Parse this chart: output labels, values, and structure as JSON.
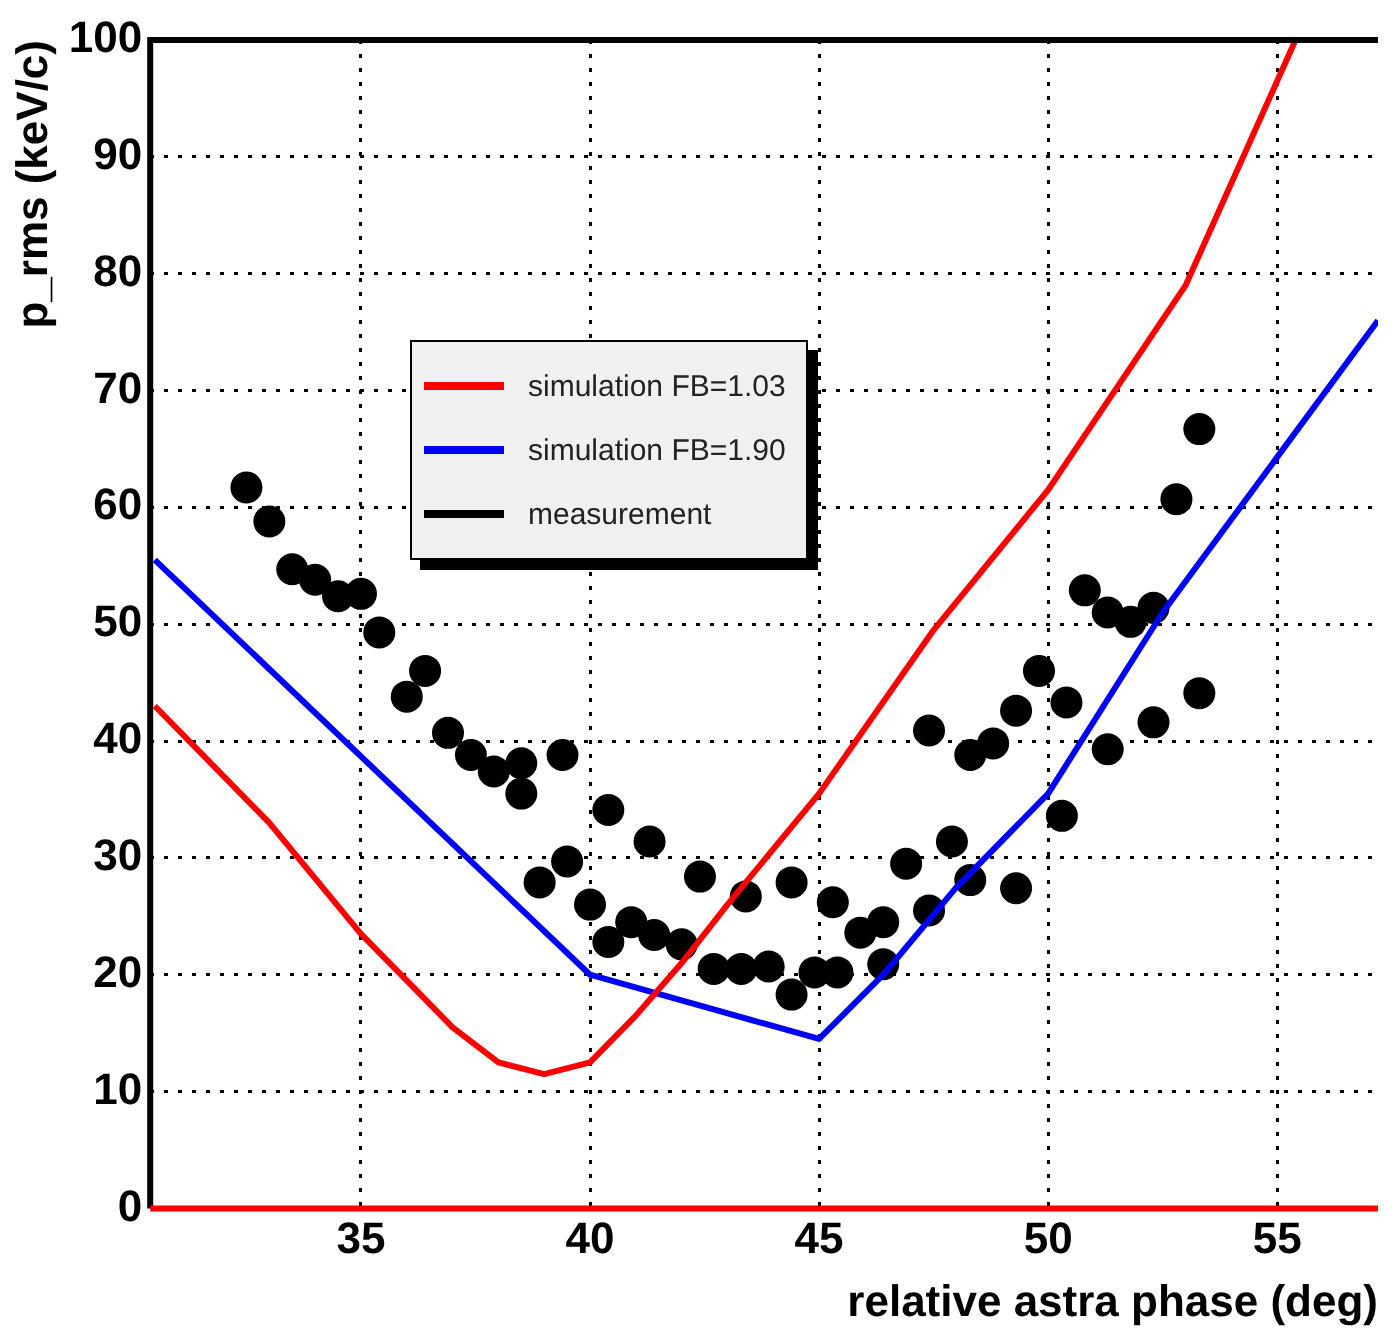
{
  "chart_data": {
    "type": "line",
    "xlabel": "relative astra phase (deg)",
    "ylabel": "p_rms (keV/c)",
    "xlim": [
      30.4,
      57.2
    ],
    "xticks": [
      35,
      40,
      45,
      50,
      55
    ],
    "ylim": [
      0,
      100
    ],
    "yticks": [
      0,
      10,
      20,
      30,
      40,
      50,
      60,
      70,
      80,
      90,
      100
    ],
    "grid": true,
    "legend": "top left",
    "series": [
      {
        "name": "simulation FB=1.03",
        "type": "line",
        "color": "#ff0000",
        "x": [
          30.5,
          33,
          35,
          37,
          38,
          39,
          40,
          41,
          42,
          43,
          45,
          47.5,
          50,
          53,
          55.4
        ],
        "values": [
          43,
          33,
          23.5,
          15.5,
          12.5,
          11.5,
          12.5,
          16.5,
          21,
          26,
          35.5,
          49.5,
          61.5,
          79,
          100
        ]
      },
      {
        "name": "simulation FB=1.90",
        "type": "line",
        "color": "#0000ff",
        "x": [
          30.5,
          40,
          45,
          46.4,
          48,
          50,
          52.5,
          57.2
        ],
        "values": [
          55.5,
          20,
          14.5,
          20,
          27.5,
          35.5,
          51,
          76
        ]
      },
      {
        "name": "measurement",
        "type": "scatter",
        "marker": "circle",
        "color": "#000000",
        "x": [
          32.5,
          33.0,
          33.5,
          34.0,
          34.5,
          35.0,
          35.4,
          36.0,
          36.4,
          36.9,
          37.4,
          37.9,
          38.5,
          38.5,
          39.4,
          38.9,
          39.5,
          40.4,
          40.0,
          40.4,
          40.9,
          41.4,
          42.0,
          41.3,
          42.4,
          42.7,
          43.3,
          43.4,
          43.9,
          44.4,
          44.4,
          44.9,
          45.3,
          45.4,
          45.9,
          46.4,
          46.4,
          46.9,
          47.4,
          47.9,
          48.3,
          47.4,
          48.3,
          48.8,
          49.3,
          49.3,
          49.8,
          50.4,
          50.3,
          50.8,
          51.3,
          51.3,
          51.8,
          52.3,
          52.3,
          52.8,
          53.3,
          53.3
        ],
        "values": [
          61.7,
          58.8,
          54.7,
          53.8,
          52.4,
          52.6,
          49.3,
          43.8,
          46.0,
          40.7,
          38.8,
          37.4,
          38.1,
          35.5,
          38.8,
          27.9,
          29.7,
          34.1,
          26.0,
          22.8,
          24.5,
          23.4,
          22.6,
          31.4,
          28.4,
          20.5,
          20.5,
          26.7,
          20.7,
          18.3,
          27.9,
          20.2,
          26.2,
          20.2,
          23.6,
          24.5,
          20.9,
          29.5,
          25.5,
          31.4,
          28.1,
          40.9,
          38.8,
          39.8,
          42.6,
          27.4,
          46.0,
          43.3,
          33.6,
          52.9,
          39.3,
          51.0,
          50.2,
          51.4,
          41.6,
          60.7,
          66.7,
          44.1
        ]
      }
    ]
  }
}
